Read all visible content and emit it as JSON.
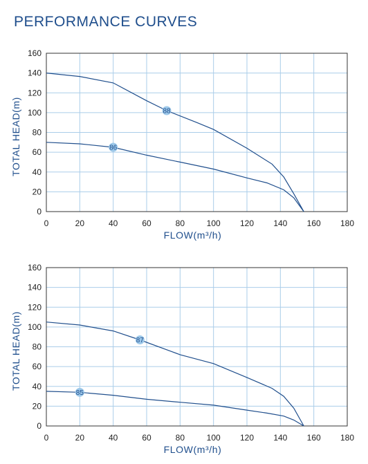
{
  "title": "PERFORMANCE CURVES",
  "colors": {
    "title": "#1f4e8c",
    "curve": "#1f4e8c",
    "grid": "#aacde9",
    "marker": "#9ec9ea",
    "axis": "#333333"
  },
  "chart_data": [
    {
      "type": "line",
      "xlabel": "FLOW(m³/h)",
      "ylabel": "TOTAL HEAD(m)",
      "xlim": [
        0,
        180
      ],
      "ylim": [
        0,
        160
      ],
      "xticks": [
        0,
        20,
        40,
        60,
        80,
        100,
        120,
        140,
        160,
        180
      ],
      "yticks": [
        0,
        20,
        40,
        60,
        80,
        100,
        120,
        140,
        160
      ],
      "grid": true,
      "series": [
        {
          "label": "88",
          "label_at": [
            72,
            102
          ],
          "points": [
            [
              0,
              140
            ],
            [
              20,
              136.5
            ],
            [
              40,
              130
            ],
            [
              60,
              112
            ],
            [
              72,
              102
            ],
            [
              90,
              90
            ],
            [
              100,
              83
            ],
            [
              120,
              64
            ],
            [
              135,
              48
            ],
            [
              142,
              35
            ],
            [
              148,
              18
            ],
            [
              154,
              0
            ]
          ]
        },
        {
          "label": "86",
          "label_at": [
            40,
            65
          ],
          "points": [
            [
              0,
              70
            ],
            [
              20,
              68.5
            ],
            [
              40,
              65
            ],
            [
              60,
              57
            ],
            [
              80,
              50
            ],
            [
              100,
              43
            ],
            [
              120,
              34
            ],
            [
              132,
              29
            ],
            [
              142,
              22
            ],
            [
              148,
              14
            ],
            [
              154,
              0
            ]
          ]
        }
      ]
    },
    {
      "type": "line",
      "xlabel": "FLOW(m³/h)",
      "ylabel": "TOTAL HEAD(m)",
      "xlim": [
        0,
        180
      ],
      "ylim": [
        0,
        160
      ],
      "xticks": [
        0,
        20,
        40,
        60,
        80,
        100,
        120,
        140,
        160,
        180
      ],
      "yticks": [
        0,
        20,
        40,
        60,
        80,
        100,
        120,
        140,
        160
      ],
      "grid": true,
      "series": [
        {
          "label": "87",
          "label_at": [
            56,
            87
          ],
          "points": [
            [
              0,
              105
            ],
            [
              20,
              102
            ],
            [
              40,
              96
            ],
            [
              56,
              87
            ],
            [
              80,
              72
            ],
            [
              100,
              63
            ],
            [
              120,
              49
            ],
            [
              135,
              38
            ],
            [
              142,
              30
            ],
            [
              148,
              18
            ],
            [
              154,
              0
            ]
          ]
        },
        {
          "label": "85",
          "label_at": [
            20,
            34
          ],
          "points": [
            [
              0,
              35
            ],
            [
              20,
              34
            ],
            [
              40,
              31
            ],
            [
              60,
              27
            ],
            [
              80,
              24
            ],
            [
              100,
              21
            ],
            [
              120,
              16
            ],
            [
              132,
              13
            ],
            [
              142,
              10
            ],
            [
              148,
              6
            ],
            [
              154,
              0
            ]
          ]
        }
      ]
    }
  ]
}
